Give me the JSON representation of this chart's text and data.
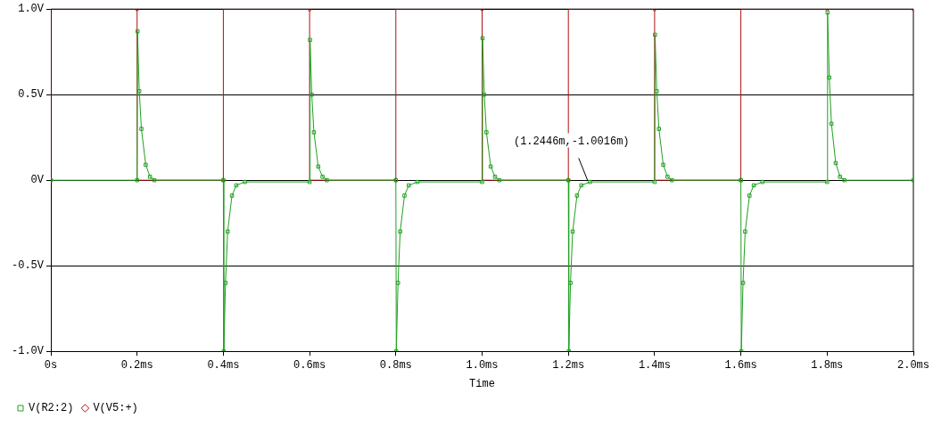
{
  "chart_data": {
    "type": "line",
    "xlabel": "Time",
    "xlim": [
      0,
      2
    ],
    "ylim": [
      -1,
      1
    ],
    "xticks": [
      {
        "value": 0,
        "label": "0s"
      },
      {
        "value": 0.2,
        "label": "0.2ms"
      },
      {
        "value": 0.4,
        "label": "0.4ms"
      },
      {
        "value": 0.6,
        "label": "0.6ms"
      },
      {
        "value": 0.8,
        "label": "0.8ms"
      },
      {
        "value": 1.0,
        "label": "1.0ms"
      },
      {
        "value": 1.2,
        "label": "1.2ms"
      },
      {
        "value": 1.4,
        "label": "1.4ms"
      },
      {
        "value": 1.6,
        "label": "1.6ms"
      },
      {
        "value": 1.8,
        "label": "1.8ms"
      },
      {
        "value": 2.0,
        "label": "2.0ms"
      }
    ],
    "yticks": [
      {
        "value": -1,
        "label": "-1.0V"
      },
      {
        "value": -0.5,
        "label": "-0.5V"
      },
      {
        "value": 0,
        "label": "0V"
      },
      {
        "value": 0.5,
        "label": "0.5V"
      },
      {
        "value": 1,
        "label": "1.0V"
      }
    ],
    "grid": "y",
    "legend": "bottom left",
    "line_style": "solid",
    "annotations": [
      {
        "text": "(1.2446m,-1.0016m)",
        "x": 1.2446,
        "y": -0.001
      }
    ],
    "series": [
      {
        "name": "V(R2:2)",
        "color": "#20a020",
        "type": "line",
        "marker": "square",
        "x": [
          0,
          0.2,
          0.201,
          0.205,
          0.21,
          0.22,
          0.23,
          0.24,
          0.4,
          0.401,
          0.405,
          0.41,
          0.42,
          0.43,
          0.45,
          0.6,
          0.601,
          0.605,
          0.61,
          0.62,
          0.63,
          0.64,
          0.8,
          0.801,
          0.805,
          0.81,
          0.82,
          0.83,
          0.85,
          1.0,
          1.001,
          1.005,
          1.01,
          1.02,
          1.03,
          1.04,
          1.2,
          1.201,
          1.205,
          1.21,
          1.22,
          1.23,
          1.25,
          1.4,
          1.401,
          1.405,
          1.41,
          1.42,
          1.43,
          1.44,
          1.6,
          1.601,
          1.605,
          1.61,
          1.62,
          1.63,
          1.65,
          1.8,
          1.801,
          1.805,
          1.81,
          1.82,
          1.83,
          1.84,
          2.0
        ],
        "values": [
          0,
          0,
          0.87,
          0.52,
          0.3,
          0.09,
          0.02,
          0,
          0,
          -1.0,
          -0.6,
          -0.3,
          -0.09,
          -0.03,
          -0.01,
          -0.01,
          0.82,
          0.5,
          0.28,
          0.08,
          0.02,
          0,
          0,
          -1.0,
          -0.6,
          -0.3,
          -0.09,
          -0.03,
          -0.01,
          -0.01,
          0.83,
          0.5,
          0.28,
          0.08,
          0.02,
          0,
          0,
          -1.0,
          -0.6,
          -0.3,
          -0.09,
          -0.03,
          -0.01,
          -0.01,
          0.85,
          0.52,
          0.3,
          0.09,
          0.02,
          0,
          0,
          -1.0,
          -0.6,
          -0.3,
          -0.09,
          -0.03,
          -0.01,
          -0.01,
          0.98,
          0.6,
          0.33,
          0.1,
          0.02,
          0,
          0
        ]
      },
      {
        "name": "V(V5:+)",
        "color": "#b01010",
        "type": "step",
        "marker": "diamond",
        "x": [
          0,
          0.2,
          0.4,
          0.6,
          0.8,
          1.0,
          1.2,
          1.4,
          1.6,
          1.8,
          2.0
        ],
        "values": [
          0,
          1,
          0,
          1,
          0,
          1,
          0,
          1,
          0,
          1,
          1
        ]
      }
    ]
  }
}
